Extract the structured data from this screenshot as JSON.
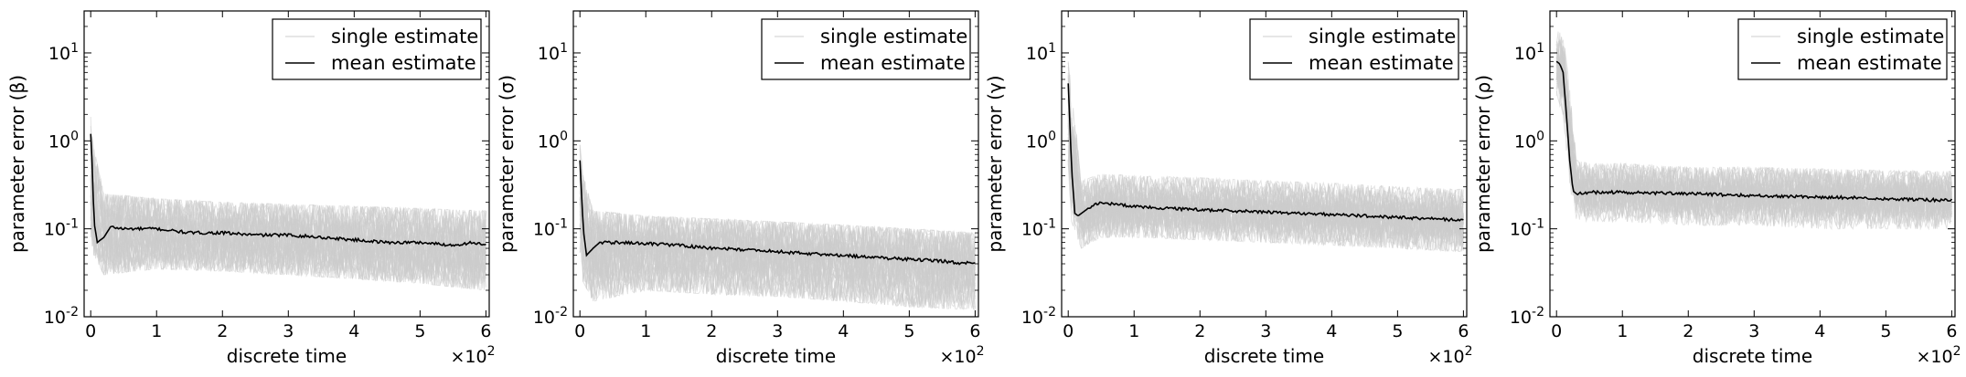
{
  "chart_data": [
    {
      "type": "line",
      "ylabel": "parameter error (β)",
      "xlabel": "discrete time",
      "x_multiplier": "×10",
      "x_multiplier_exp": "2",
      "xlim": [
        -0.1,
        6.05
      ],
      "ylim": [
        0.01,
        30
      ],
      "y_scale": "log",
      "x_ticks": [
        0,
        1,
        2,
        3,
        4,
        5,
        6
      ],
      "x_tick_labels": [
        "0",
        "1",
        "2",
        "3",
        "4",
        "5",
        "6"
      ],
      "y_ticks": [
        0.01,
        0.1,
        1,
        10
      ],
      "y_tick_labels": [
        [
          "10",
          "-2"
        ],
        [
          "10",
          "-1"
        ],
        [
          "10",
          "0"
        ],
        [
          "10",
          "1"
        ]
      ],
      "legend": {
        "position": "top-right",
        "entries": [
          "single estimate",
          "mean estimate"
        ]
      },
      "series": [
        {
          "name": "mean estimate",
          "color": "#000000",
          "x": [
            0,
            0.02,
            0.05,
            0.1,
            0.2,
            0.3,
            0.5,
            1,
            1.5,
            2,
            2.5,
            3,
            3.5,
            4,
            4.5,
            5,
            5.5,
            5.8,
            6
          ],
          "y": [
            1.2,
            0.6,
            0.12,
            0.07,
            0.08,
            0.105,
            0.1,
            0.1,
            0.09,
            0.09,
            0.085,
            0.085,
            0.08,
            0.075,
            0.07,
            0.07,
            0.065,
            0.07,
            0.065
          ]
        },
        {
          "name": "single estimate",
          "color": "#cccccc",
          "band_x": [
            0,
            0.05,
            0.2,
            1,
            2,
            3,
            4,
            5,
            6
          ],
          "band_low": [
            0.08,
            0.05,
            0.03,
            0.035,
            0.033,
            0.03,
            0.027,
            0.024,
            0.02
          ],
          "band_high": [
            2.0,
            0.8,
            0.25,
            0.22,
            0.2,
            0.19,
            0.18,
            0.17,
            0.16
          ]
        }
      ]
    },
    {
      "type": "line",
      "ylabel": "parameter error (σ)",
      "xlabel": "discrete time",
      "x_multiplier": "×10",
      "x_multiplier_exp": "2",
      "xlim": [
        -0.1,
        6.05
      ],
      "ylim": [
        0.01,
        30
      ],
      "y_scale": "log",
      "x_ticks": [
        0,
        1,
        2,
        3,
        4,
        5,
        6
      ],
      "x_tick_labels": [
        "0",
        "1",
        "2",
        "3",
        "4",
        "5",
        "6"
      ],
      "y_ticks": [
        0.01,
        0.1,
        1,
        10
      ],
      "y_tick_labels": [
        [
          "10",
          "-2"
        ],
        [
          "10",
          "-1"
        ],
        [
          "10",
          "0"
        ],
        [
          "10",
          "1"
        ]
      ],
      "legend": {
        "position": "top-right",
        "entries": [
          "single estimate",
          "mean estimate"
        ]
      },
      "series": [
        {
          "name": "mean estimate",
          "color": "#000000",
          "x": [
            0,
            0.02,
            0.05,
            0.1,
            0.2,
            0.3,
            0.5,
            1,
            1.5,
            2,
            2.5,
            3,
            3.5,
            4,
            4.5,
            5,
            5.5,
            5.8,
            6
          ],
          "y": [
            0.6,
            0.3,
            0.1,
            0.05,
            0.06,
            0.07,
            0.07,
            0.068,
            0.065,
            0.06,
            0.058,
            0.055,
            0.052,
            0.05,
            0.047,
            0.045,
            0.043,
            0.04,
            0.042
          ]
        },
        {
          "name": "single estimate",
          "color": "#cccccc",
          "band_x": [
            0,
            0.05,
            0.2,
            1,
            2,
            3,
            4,
            5,
            6
          ],
          "band_low": [
            0.05,
            0.025,
            0.015,
            0.02,
            0.018,
            0.017,
            0.015,
            0.013,
            0.012
          ],
          "band_high": [
            0.9,
            0.4,
            0.16,
            0.14,
            0.13,
            0.12,
            0.11,
            0.1,
            0.09
          ]
        }
      ]
    },
    {
      "type": "line",
      "ylabel": "parameter error (γ)",
      "xlabel": "discrete time",
      "x_multiplier": "×10",
      "x_multiplier_exp": "2",
      "xlim": [
        -0.1,
        6.05
      ],
      "ylim": [
        0.01,
        30
      ],
      "y_scale": "log",
      "x_ticks": [
        0,
        1,
        2,
        3,
        4,
        5,
        6
      ],
      "x_tick_labels": [
        "0",
        "1",
        "2",
        "3",
        "4",
        "5",
        "6"
      ],
      "y_ticks": [
        0.01,
        0.1,
        1,
        10
      ],
      "y_tick_labels": [
        [
          "10",
          "-2"
        ],
        [
          "10",
          "-1"
        ],
        [
          "10",
          "0"
        ],
        [
          "10",
          "1"
        ]
      ],
      "legend": {
        "position": "top-right",
        "entries": [
          "single estimate",
          "mean estimate"
        ]
      },
      "series": [
        {
          "name": "mean estimate",
          "color": "#000000",
          "x": [
            0,
            0.02,
            0.05,
            0.1,
            0.15,
            0.2,
            0.3,
            0.5,
            0.7,
            1,
            1.5,
            2,
            2.5,
            3,
            3.5,
            4,
            4.5,
            5,
            5.5,
            6
          ],
          "y": [
            4.5,
            2.0,
            0.5,
            0.15,
            0.14,
            0.15,
            0.17,
            0.2,
            0.19,
            0.18,
            0.17,
            0.165,
            0.16,
            0.155,
            0.15,
            0.145,
            0.14,
            0.135,
            0.13,
            0.125
          ]
        },
        {
          "name": "single estimate",
          "color": "#cccccc",
          "band_x": [
            0,
            0.05,
            0.2,
            0.5,
            1,
            2,
            3,
            4,
            5,
            6
          ],
          "band_low": [
            0.5,
            0.12,
            0.06,
            0.08,
            0.08,
            0.075,
            0.07,
            0.065,
            0.06,
            0.055
          ],
          "band_high": [
            8,
            4,
            0.35,
            0.42,
            0.4,
            0.38,
            0.35,
            0.33,
            0.3,
            0.28
          ]
        }
      ]
    },
    {
      "type": "line",
      "ylabel": "parameter error (ρ)",
      "xlabel": "discrete time",
      "x_multiplier": "×10",
      "x_multiplier_exp": "2",
      "xlim": [
        -0.1,
        6.05
      ],
      "ylim": [
        0.01,
        30
      ],
      "y_scale": "log",
      "x_ticks": [
        0,
        1,
        2,
        3,
        4,
        5,
        6
      ],
      "x_tick_labels": [
        "0",
        "1",
        "2",
        "3",
        "4",
        "5",
        "6"
      ],
      "y_ticks": [
        0.01,
        0.1,
        1,
        10
      ],
      "y_tick_labels": [
        [
          "10",
          "-2"
        ],
        [
          "10",
          "-1"
        ],
        [
          "10",
          "0"
        ],
        [
          "10",
          "1"
        ]
      ],
      "legend": {
        "position": "top-right",
        "entries": [
          "single estimate",
          "mean estimate"
        ]
      },
      "series": [
        {
          "name": "mean estimate",
          "color": "#000000",
          "x": [
            0,
            0.05,
            0.1,
            0.15,
            0.2,
            0.25,
            0.3,
            0.5,
            1,
            1.5,
            2,
            2.5,
            3,
            3.5,
            4,
            4.5,
            5,
            5.5,
            6
          ],
          "y": [
            8,
            7.5,
            6,
            2.0,
            0.6,
            0.27,
            0.25,
            0.26,
            0.26,
            0.255,
            0.25,
            0.245,
            0.24,
            0.235,
            0.23,
            0.225,
            0.22,
            0.215,
            0.21
          ]
        },
        {
          "name": "single estimate",
          "color": "#cccccc",
          "band_x": [
            0,
            0.1,
            0.2,
            0.3,
            0.5,
            1,
            2,
            3,
            4,
            5,
            6
          ],
          "band_low": [
            3,
            2,
            0.3,
            0.13,
            0.12,
            0.12,
            0.11,
            0.11,
            0.1,
            0.1,
            0.1
          ],
          "band_high": [
            18,
            16,
            4,
            0.6,
            0.55,
            0.55,
            0.5,
            0.5,
            0.48,
            0.46,
            0.45
          ]
        }
      ]
    }
  ]
}
